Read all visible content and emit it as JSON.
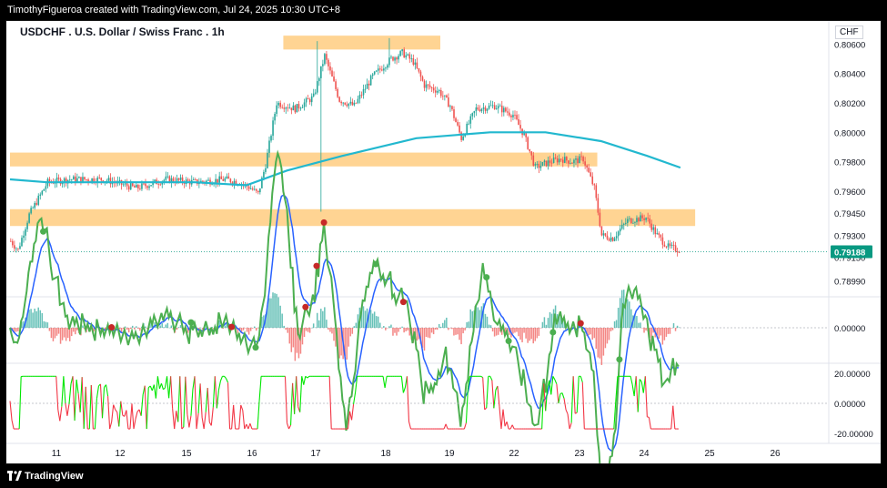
{
  "header": {
    "caption": "TimothyFigueroa created with TradingView.com, Jul 24, 2025 10:30 UTC+8",
    "symbol_title": "USDCHF . U.S. Dollar / Swiss Franc . 1h",
    "currency": "CHF"
  },
  "footer": {
    "brand": "TradingView"
  },
  "chart_data": {
    "type": "candlestick",
    "symbol": "USDCHF",
    "interval": "1h",
    "x_ticks": [
      "11",
      "12",
      "15",
      "16",
      "17",
      "18",
      "19",
      "22",
      "23",
      "24",
      "25",
      "26"
    ],
    "price_panel": {
      "y_ticks": [
        "0.80600",
        "0.80400",
        "0.80200",
        "0.80000",
        "0.79800",
        "0.79600",
        "0.79450",
        "0.79300",
        "0.79150",
        "0.78990"
      ],
      "ylim": [
        0.789,
        0.8072
      ],
      "last_price": "0.79188",
      "anchors": [
        [
          0,
          0.7926
        ],
        [
          4,
          0.792
        ],
        [
          10,
          0.7944
        ],
        [
          20,
          0.7966
        ],
        [
          32,
          0.7968
        ],
        [
          50,
          0.7968
        ],
        [
          68,
          0.7962
        ],
        [
          84,
          0.7968
        ],
        [
          100,
          0.7966
        ],
        [
          116,
          0.7968
        ],
        [
          124,
          0.7966
        ],
        [
          130,
          0.7962
        ],
        [
          134,
          0.7958
        ],
        [
          138,
          0.7978
        ],
        [
          144,
          0.802
        ],
        [
          154,
          0.8016
        ],
        [
          164,
          0.8024
        ],
        [
          170,
          0.8052
        ],
        [
          178,
          0.8022
        ],
        [
          186,
          0.8018
        ],
        [
          196,
          0.8038
        ],
        [
          206,
          0.805
        ],
        [
          212,
          0.8054
        ],
        [
          218,
          0.8048
        ],
        [
          224,
          0.8032
        ],
        [
          232,
          0.8028
        ],
        [
          238,
          0.8018
        ],
        [
          244,
          0.7996
        ],
        [
          252,
          0.8016
        ],
        [
          262,
          0.8018
        ],
        [
          272,
          0.8012
        ],
        [
          278,
          0.7998
        ],
        [
          284,
          0.7976
        ],
        [
          292,
          0.798
        ],
        [
          298,
          0.7982
        ],
        [
          304,
          0.798
        ],
        [
          310,
          0.7982
        ],
        [
          316,
          0.7962
        ],
        [
          320,
          0.793
        ],
        [
          326,
          0.7928
        ],
        [
          334,
          0.794
        ],
        [
          344,
          0.7942
        ],
        [
          350,
          0.793
        ],
        [
          356,
          0.7922
        ],
        [
          362,
          0.792
        ]
      ],
      "ma": [
        [
          0,
          0.7968
        ],
        [
          20,
          0.7966
        ],
        [
          60,
          0.7966
        ],
        [
          100,
          0.7966
        ],
        [
          128,
          0.7964
        ],
        [
          150,
          0.7974
        ],
        [
          180,
          0.7984
        ],
        [
          220,
          0.7996
        ],
        [
          260,
          0.8
        ],
        [
          290,
          0.8
        ],
        [
          320,
          0.7994
        ],
        [
          345,
          0.7984
        ],
        [
          363,
          0.7976
        ]
      ],
      "zones": [
        {
          "from_bar": 148,
          "to_bar": 233,
          "top": 0.8062,
          "bottom": 0.806
        },
        {
          "from_bar": 0,
          "to_bar": 318,
          "top": 0.79825,
          "bottom": 0.79805
        },
        {
          "from_bar": 0,
          "to_bar": 371,
          "top": 0.7944,
          "bottom": 0.794
        }
      ],
      "colors": {
        "up": "#26a69a",
        "down": "#ef5350",
        "ma": "#22b8cf",
        "zone": "#ffcc80",
        "last_price_bg": "#089981"
      }
    },
    "macd_panel": {
      "y_ticks": [
        "0.00000"
      ],
      "signals": [
        [
          18,
          "green"
        ],
        [
          55,
          "red"
        ],
        [
          98,
          "green"
        ],
        [
          120,
          "red"
        ],
        [
          133,
          "green"
        ],
        [
          160,
          "red"
        ],
        [
          166,
          "red"
        ],
        [
          170,
          "red"
        ],
        [
          198,
          "green"
        ],
        [
          213,
          "red"
        ],
        [
          258,
          "green"
        ],
        [
          270,
          "green"
        ],
        [
          294,
          "green"
        ],
        [
          309,
          "red"
        ],
        [
          330,
          "green"
        ]
      ]
    },
    "oscillator_panel": {
      "y_ticks": [
        "20.00000",
        "0.00000",
        "-20.00000"
      ]
    }
  }
}
